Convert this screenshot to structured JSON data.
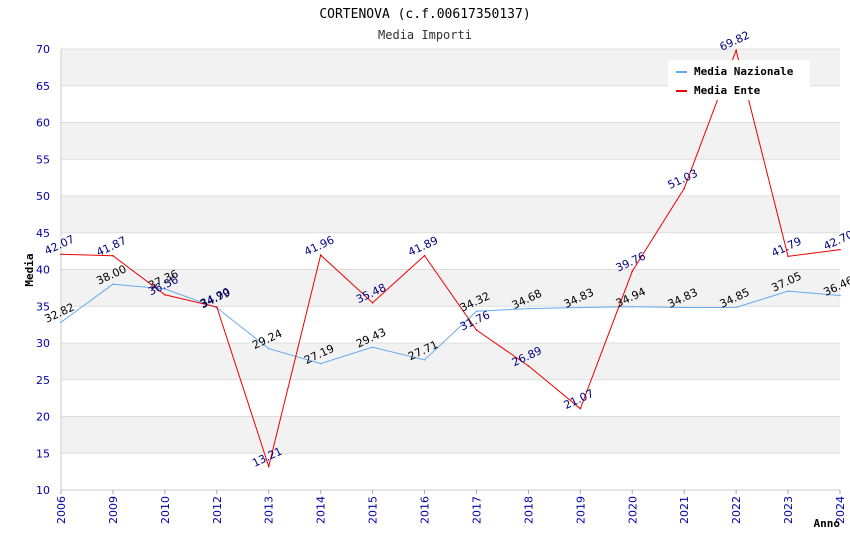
{
  "chart_data": {
    "type": "line",
    "title": "CORTENOVA (c.f.00617350137)",
    "subtitle": "Media Importi",
    "xlabel": "Anno",
    "ylabel": "Media",
    "ylim": [
      10,
      70
    ],
    "ytick_step": 5,
    "categories": [
      "2006",
      "2009",
      "2010",
      "2012",
      "2013",
      "2014",
      "2015",
      "2016",
      "2017",
      "2018",
      "2019",
      "2020",
      "2021",
      "2022",
      "2023",
      "2024"
    ],
    "series": [
      {
        "name": "Media Nazionale",
        "color": "#66aaee",
        "values": [
          32.82,
          38.0,
          37.36,
          34.79,
          29.24,
          27.19,
          29.43,
          27.71,
          34.32,
          34.68,
          34.83,
          34.94,
          34.83,
          34.85,
          37.05,
          36.46
        ],
        "labels": [
          "32.82",
          "38.00",
          "37.36",
          "34.79",
          "29.24",
          "27.19",
          "29.43",
          "27.71",
          "34.32",
          "34.68",
          "34.83",
          "34.94",
          "34.83",
          "34.85",
          "37.05",
          "36.46"
        ]
      },
      {
        "name": "Media Ente",
        "color": "#ee0000",
        "values": [
          42.07,
          41.87,
          36.56,
          34.9,
          13.21,
          41.96,
          35.48,
          41.89,
          31.76,
          26.89,
          21.07,
          39.76,
          51.03,
          69.82,
          41.79,
          42.7
        ],
        "labels": [
          "42.07",
          "41.87",
          "36.56",
          "34.90",
          "13.21",
          "41.96",
          "35.48",
          "41.89",
          "31.76",
          "26.89",
          "21.07",
          "39.76",
          "51.03",
          "69.82",
          "41.79",
          "42.70"
        ]
      }
    ],
    "legend_position": "top-right",
    "grid": true
  }
}
